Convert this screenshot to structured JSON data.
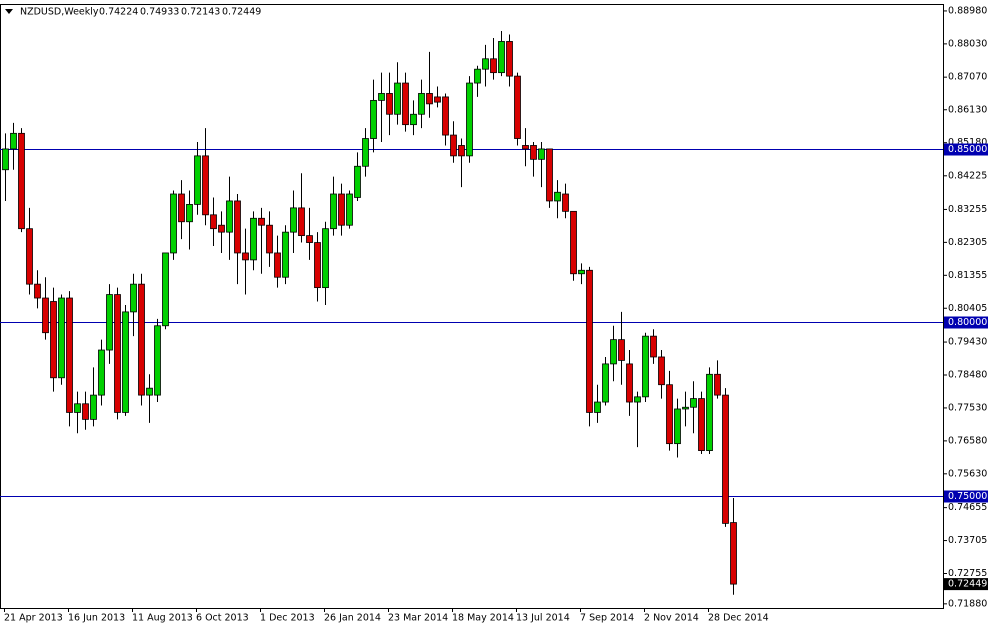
{
  "chart_data": {
    "type": "candlestick",
    "title": "NZDUSD,Weekly",
    "categories": [
      "21 Apr 2013",
      null,
      null,
      null,
      null,
      null,
      null,
      null,
      "16 Jun 2013",
      null,
      null,
      null,
      null,
      null,
      null,
      null,
      "11 Aug 2013",
      null,
      null,
      null,
      null,
      null,
      null,
      null,
      "6 Oct 2013",
      null,
      null,
      null,
      null,
      null,
      null,
      null,
      "1 Dec 2013",
      null,
      null,
      null,
      null,
      null,
      null,
      null,
      "26 Jan 2014",
      null,
      null,
      null,
      null,
      null,
      null,
      null,
      "23 Mar 2014",
      null,
      null,
      null,
      null,
      null,
      null,
      null,
      "18 May 2014",
      null,
      null,
      null,
      null,
      null,
      null,
      null,
      "13 Jul 2014",
      null,
      null,
      null,
      null,
      null,
      null,
      null,
      "7 Sep 2014",
      null,
      null,
      null,
      null,
      null,
      null,
      null,
      "2 Nov 2014",
      null,
      null,
      null,
      null,
      null,
      null,
      null,
      "28 Dec 2014",
      null,
      null,
      null
    ],
    "open": [
      0.844,
      0.85,
      0.8545,
      0.827,
      0.811,
      0.807,
      0.806,
      0.784,
      0.807,
      0.774,
      0.7765,
      0.772,
      0.779,
      0.792,
      0.808,
      0.774,
      0.803,
      0.811,
      0.779,
      0.779,
      0.799,
      0.82,
      0.837,
      0.829,
      0.834,
      0.848,
      0.831,
      0.828,
      0.826,
      0.835,
      0.82,
      0.818,
      0.83,
      0.828,
      0.82,
      0.813,
      0.826,
      0.833,
      0.825,
      0.823,
      0.81,
      0.827,
      0.837,
      0.828,
      0.836,
      0.845,
      0.853,
      0.864,
      0.866,
      0.86,
      0.869,
      0.857,
      0.86,
      0.866,
      0.865,
      0.865,
      0.854,
      0.851,
      0.848,
      0.869,
      0.873,
      0.876,
      0.872,
      0.881,
      0.871,
      0.851,
      0.851,
      0.847,
      0.85,
      0.835,
      0.837,
      0.832,
      0.814,
      0.815,
      0.774,
      0.777,
      0.788,
      0.795,
      0.788,
      0.777,
      0.7785,
      0.796,
      0.79,
      0.782,
      0.765,
      0.775,
      0.7755,
      0.778,
      0.763,
      0.785,
      0.779,
      0.74224
    ],
    "high": [
      0.8545,
      0.8575,
      0.856,
      0.833,
      0.815,
      0.813,
      0.81,
      0.808,
      0.809,
      0.78,
      0.78,
      0.787,
      0.795,
      0.811,
      0.81,
      0.805,
      0.814,
      0.814,
      0.785,
      0.801,
      0.82,
      0.838,
      0.841,
      0.838,
      0.852,
      0.856,
      0.836,
      0.832,
      0.842,
      0.837,
      0.827,
      0.832,
      0.833,
      0.832,
      0.825,
      0.828,
      0.838,
      0.843,
      0.833,
      0.826,
      0.829,
      0.842,
      0.84,
      0.838,
      0.849,
      0.856,
      0.87,
      0.872,
      0.872,
      0.875,
      0.872,
      0.864,
      0.87,
      0.878,
      0.868,
      0.866,
      0.858,
      0.853,
      0.871,
      0.874,
      0.88,
      0.882,
      0.884,
      0.883,
      0.872,
      0.856,
      0.852,
      0.852,
      0.85,
      0.841,
      0.84,
      0.832,
      0.817,
      0.816,
      0.782,
      0.79,
      0.799,
      0.803,
      0.792,
      0.78,
      0.797,
      0.798,
      0.792,
      0.786,
      0.778,
      0.78,
      0.783,
      0.78,
      0.787,
      0.789,
      0.781,
      0.74933
    ],
    "low": [
      0.835,
      0.844,
      0.826,
      0.808,
      0.804,
      0.795,
      0.78,
      0.782,
      0.77,
      0.768,
      0.769,
      0.77,
      0.776,
      0.788,
      0.772,
      0.773,
      0.796,
      0.776,
      0.771,
      0.777,
      0.798,
      0.818,
      0.824,
      0.821,
      0.831,
      0.828,
      0.822,
      0.82,
      0.818,
      0.811,
      0.808,
      0.815,
      0.814,
      0.816,
      0.81,
      0.811,
      0.82,
      0.823,
      0.818,
      0.806,
      0.805,
      0.825,
      0.825,
      0.827,
      0.835,
      0.842,
      0.849,
      0.852,
      0.854,
      0.857,
      0.855,
      0.854,
      0.856,
      0.859,
      0.862,
      0.851,
      0.846,
      0.839,
      0.846,
      0.865,
      0.868,
      0.87,
      0.871,
      0.868,
      0.851,
      0.845,
      0.842,
      0.839,
      0.833,
      0.83,
      0.83,
      0.812,
      0.811,
      0.77,
      0.771,
      0.776,
      0.783,
      0.782,
      0.773,
      0.764,
      0.777,
      0.788,
      0.778,
      0.763,
      0.761,
      0.77,
      0.768,
      0.762,
      0.762,
      0.778,
      0.741,
      0.72143
    ],
    "close": [
      0.85,
      0.8545,
      0.827,
      0.811,
      0.807,
      0.797,
      0.784,
      0.807,
      0.774,
      0.7765,
      0.772,
      0.779,
      0.792,
      0.808,
      0.774,
      0.803,
      0.811,
      0.779,
      0.781,
      0.799,
      0.82,
      0.837,
      0.829,
      0.834,
      0.848,
      0.831,
      0.827,
      0.826,
      0.835,
      0.82,
      0.818,
      0.83,
      0.828,
      0.82,
      0.813,
      0.826,
      0.833,
      0.825,
      0.823,
      0.81,
      0.827,
      0.837,
      0.828,
      0.837,
      0.845,
      0.853,
      0.864,
      0.866,
      0.86,
      0.869,
      0.857,
      0.86,
      0.866,
      0.863,
      0.8635,
      0.854,
      0.848,
      0.848,
      0.869,
      0.873,
      0.876,
      0.872,
      0.881,
      0.871,
      0.853,
      0.85,
      0.847,
      0.85,
      0.835,
      0.8375,
      0.832,
      0.814,
      0.815,
      0.774,
      0.777,
      0.788,
      0.795,
      0.789,
      0.777,
      0.7785,
      0.796,
      0.79,
      0.782,
      0.765,
      0.775,
      0.7755,
      0.778,
      0.763,
      0.785,
      0.779,
      0.742,
      0.72449
    ],
    "up_color": "#00d000",
    "down_color": "#d80000",
    "level_color": "#0000b0",
    "ylim": [
      0.7176,
      0.8918
    ],
    "yticks": [
      {
        "value": 0.8898,
        "label": "0.88980"
      },
      {
        "value": 0.8803,
        "label": "0.88030"
      },
      {
        "value": 0.8707,
        "label": "0.87070"
      },
      {
        "value": 0.8613,
        "label": "0.86130"
      },
      {
        "value": 0.8518,
        "label": "0.85180"
      },
      {
        "value": 0.84225,
        "label": "0.84225"
      },
      {
        "value": 0.83255,
        "label": "0.83255"
      },
      {
        "value": 0.82305,
        "label": "0.82305"
      },
      {
        "value": 0.81355,
        "label": "0.81355"
      },
      {
        "value": 0.80405,
        "label": "0.80405"
      },
      {
        "value": 0.7943,
        "label": "0.79430"
      },
      {
        "value": 0.7848,
        "label": "0.78480"
      },
      {
        "value": 0.7753,
        "label": "0.77530"
      },
      {
        "value": 0.7658,
        "label": "0.76580"
      },
      {
        "value": 0.7563,
        "label": "0.75630"
      },
      {
        "value": 0.74655,
        "label": "0.74655"
      },
      {
        "value": 0.73705,
        "label": "0.73705"
      },
      {
        "value": 0.72755,
        "label": "0.72755"
      },
      {
        "value": 0.7188,
        "label": "0.71880"
      }
    ],
    "levels": [
      {
        "value": 0.85,
        "label": "0.85000"
      },
      {
        "value": 0.8,
        "label": "0.80000"
      },
      {
        "value": 0.75,
        "label": "0.75000"
      }
    ]
  }
}
